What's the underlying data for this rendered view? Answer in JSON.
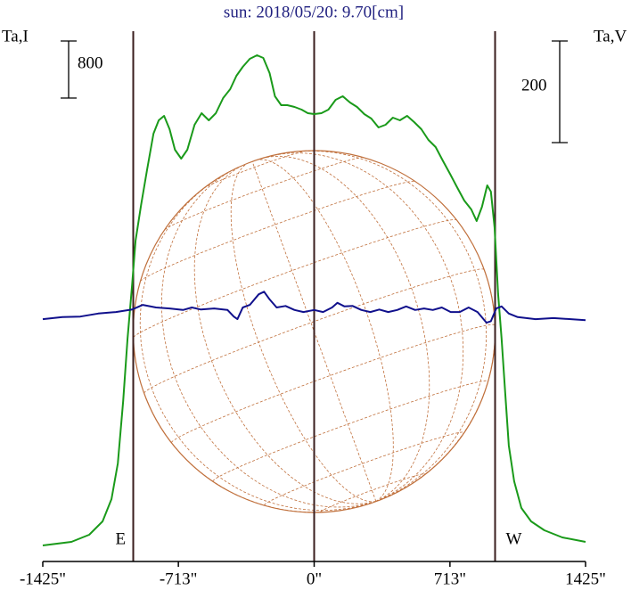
{
  "chart_data": {
    "type": "line",
    "title": "sun: 2018/05/20: 9.70[cm]",
    "ylabel": "Ta,I",
    "y2label": "Ta,V",
    "left_scale": 800,
    "right_scale": 200,
    "limb_lines": [
      -950,
      0,
      950
    ],
    "limb_line_color": "#3a1e1e",
    "annotations": [
      "E",
      "W"
    ],
    "disk_color": "#c0703c",
    "xlim": [
      -1425,
      1425
    ],
    "xticks": [
      {
        "value": -1425,
        "label": "-1425\""
      },
      {
        "value": -713,
        "label": "-713\""
      },
      {
        "value": 0,
        "label": "0\""
      },
      {
        "value": 713,
        "label": "713\""
      },
      {
        "value": 1425,
        "label": "1425\""
      }
    ],
    "ylim": [
      0,
      7375
    ],
    "y2lim": [
      -477,
      558
    ],
    "series": [
      {
        "color": "#1a9a1a",
        "x": [
          -1425,
          -1275,
          -1181,
          -1111,
          -1064,
          -1031,
          -1003,
          -980,
          -956,
          -938,
          -909,
          -877,
          -844,
          -816,
          -788,
          -759,
          -731,
          -698,
          -666,
          -628,
          -591,
          -553,
          -516,
          -478,
          -441,
          -408,
          -375,
          -338,
          -300,
          -267,
          -234,
          -206,
          -173,
          -141,
          -103,
          -66,
          -33,
          0,
          38,
          75,
          113,
          150,
          188,
          225,
          263,
          300,
          338,
          375,
          413,
          450,
          488,
          525,
          563,
          600,
          638,
          675,
          713,
          750,
          788,
          825,
          853,
          881,
          909,
          928,
          947,
          966,
          984,
          1003,
          1022,
          1050,
          1088,
          1139,
          1209,
          1303,
          1425
        ],
        "values": [
          225,
          275,
          375,
          563,
          875,
          1375,
          2250,
          3125,
          3875,
          4500,
          5000,
          5500,
          6000,
          6188,
          6250,
          6063,
          5775,
          5650,
          5775,
          6125,
          6288,
          6188,
          6288,
          6500,
          6625,
          6813,
          6938,
          7050,
          7100,
          7063,
          6850,
          6525,
          6400,
          6400,
          6375,
          6338,
          6288,
          6275,
          6288,
          6338,
          6475,
          6525,
          6438,
          6375,
          6275,
          6213,
          6088,
          6125,
          6225,
          6188,
          6250,
          6163,
          6063,
          5913,
          5813,
          5625,
          5438,
          5250,
          5063,
          4938,
          4775,
          4975,
          5275,
          5188,
          4688,
          3750,
          3125,
          2375,
          1625,
          1125,
          750,
          563,
          438,
          338,
          275
        ]
      },
      {
        "color": "#10108c",
        "axis": "y2",
        "x": [
          -1425,
          -1322,
          -1228,
          -1134,
          -1041,
          -956,
          -900,
          -830,
          -759,
          -689,
          -642,
          -595,
          -525,
          -455,
          -422,
          -403,
          -375,
          -338,
          -291,
          -263,
          -234,
          -197,
          -150,
          -103,
          -56,
          0,
          47,
          94,
          122,
          159,
          202,
          248,
          295,
          342,
          389,
          436,
          483,
          530,
          577,
          623,
          670,
          717,
          764,
          811,
          858,
          905,
          928,
          956,
          984,
          1022,
          1069,
          1163,
          1256,
          1425
        ],
        "values": [
          0,
          4,
          5,
          11,
          14,
          19,
          28,
          23,
          21,
          18,
          23,
          19,
          21,
          18,
          5,
          0,
          23,
          28,
          49,
          54,
          39,
          23,
          26,
          18,
          14,
          18,
          14,
          23,
          32,
          25,
          26,
          18,
          14,
          19,
          14,
          18,
          25,
          18,
          21,
          18,
          23,
          14,
          14,
          23,
          14,
          -7,
          -4,
          21,
          25,
          11,
          4,
          0,
          2,
          -2
        ]
      }
    ]
  }
}
